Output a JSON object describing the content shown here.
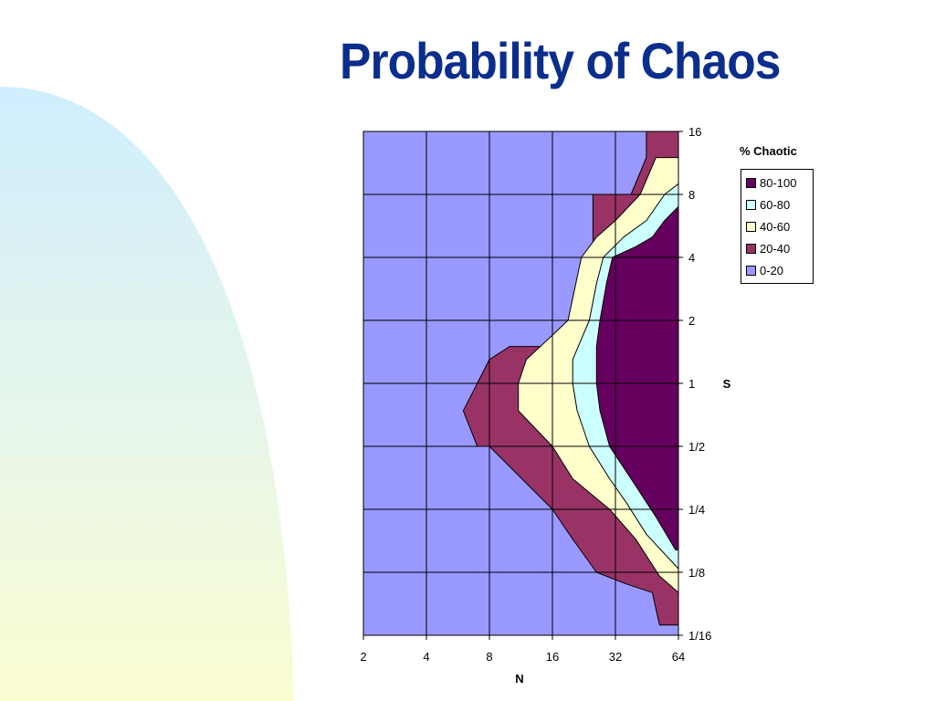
{
  "slide": {
    "title": "Probability of Chaos"
  },
  "chart_data": {
    "type": "area",
    "subtype": "contour",
    "title": "",
    "xlabel": "N",
    "ylabel": "S",
    "x_scale": "log2",
    "y_scale": "log2",
    "x_ticks": [
      "2",
      "4",
      "8",
      "16",
      "32",
      "64"
    ],
    "y_ticks": [
      "16",
      "8",
      "4",
      "2",
      "1",
      "1/2",
      "1/4",
      "1/8",
      "1/16"
    ],
    "xlim": [
      2,
      64
    ],
    "ylim": [
      0.0625,
      16
    ],
    "grid": true,
    "legend_title": "% Chaotic",
    "legend_position": "right",
    "legend": [
      {
        "label": "80-100",
        "color": "#66005f"
      },
      {
        "label": "60-80",
        "color": "#ccffff"
      },
      {
        "label": "40-60",
        "color": "#ffffcc"
      },
      {
        "label": "20-40",
        "color": "#993366"
      },
      {
        "label": "0-20",
        "color": "#9999ff"
      }
    ],
    "band_boundaries": [
      {
        "band": "20-40",
        "points": [
          [
            45,
            16
          ],
          [
            45,
            12
          ],
          [
            38,
            8
          ],
          [
            25,
            8
          ],
          [
            25,
            4
          ],
          [
            22,
            3
          ],
          [
            19,
            2
          ],
          [
            19,
            1.5
          ],
          [
            10,
            1.5
          ],
          [
            8,
            1.3
          ],
          [
            7,
            1
          ],
          [
            6,
            0.74
          ],
          [
            7,
            0.5
          ],
          [
            8,
            0.5
          ],
          [
            16,
            0.25
          ],
          [
            20,
            0.18
          ],
          [
            26,
            0.125
          ],
          [
            36,
            0.11
          ],
          [
            48,
            0.1
          ],
          [
            52,
            0.07
          ],
          [
            64,
            0.07
          ]
        ]
      },
      {
        "band": "40-60",
        "points": [
          [
            64,
            12
          ],
          [
            50,
            12
          ],
          [
            42,
            8
          ],
          [
            32,
            6
          ],
          [
            26,
            5
          ],
          [
            22,
            4
          ],
          [
            19,
            2
          ],
          [
            16,
            1.7
          ],
          [
            12,
            1.3
          ],
          [
            11,
            1
          ],
          [
            11,
            0.74
          ],
          [
            16,
            0.5
          ],
          [
            20,
            0.35
          ],
          [
            30,
            0.25
          ],
          [
            40,
            0.18
          ],
          [
            52,
            0.12
          ],
          [
            64,
            0.1
          ]
        ]
      },
      {
        "band": "60-80",
        "points": [
          [
            64,
            9
          ],
          [
            55,
            8
          ],
          [
            45,
            6
          ],
          [
            35,
            5
          ],
          [
            28,
            4
          ],
          [
            26,
            3
          ],
          [
            24,
            2
          ],
          [
            20,
            1.3
          ],
          [
            20,
            1
          ],
          [
            21,
            0.74
          ],
          [
            24,
            0.5
          ],
          [
            30,
            0.35
          ],
          [
            36,
            0.27
          ],
          [
            45,
            0.19
          ],
          [
            64,
            0.13
          ]
        ]
      },
      {
        "band": "80-100",
        "points": [
          [
            64,
            7
          ],
          [
            55,
            6
          ],
          [
            48,
            5
          ],
          [
            40,
            4.5
          ],
          [
            31,
            4
          ],
          [
            29,
            3
          ],
          [
            27,
            2
          ],
          [
            26,
            1.5
          ],
          [
            26,
            1
          ],
          [
            27,
            0.74
          ],
          [
            30,
            0.5
          ],
          [
            38,
            0.35
          ],
          [
            50,
            0.23
          ],
          [
            62,
            0.16
          ],
          [
            64,
            0.16
          ]
        ]
      }
    ]
  }
}
